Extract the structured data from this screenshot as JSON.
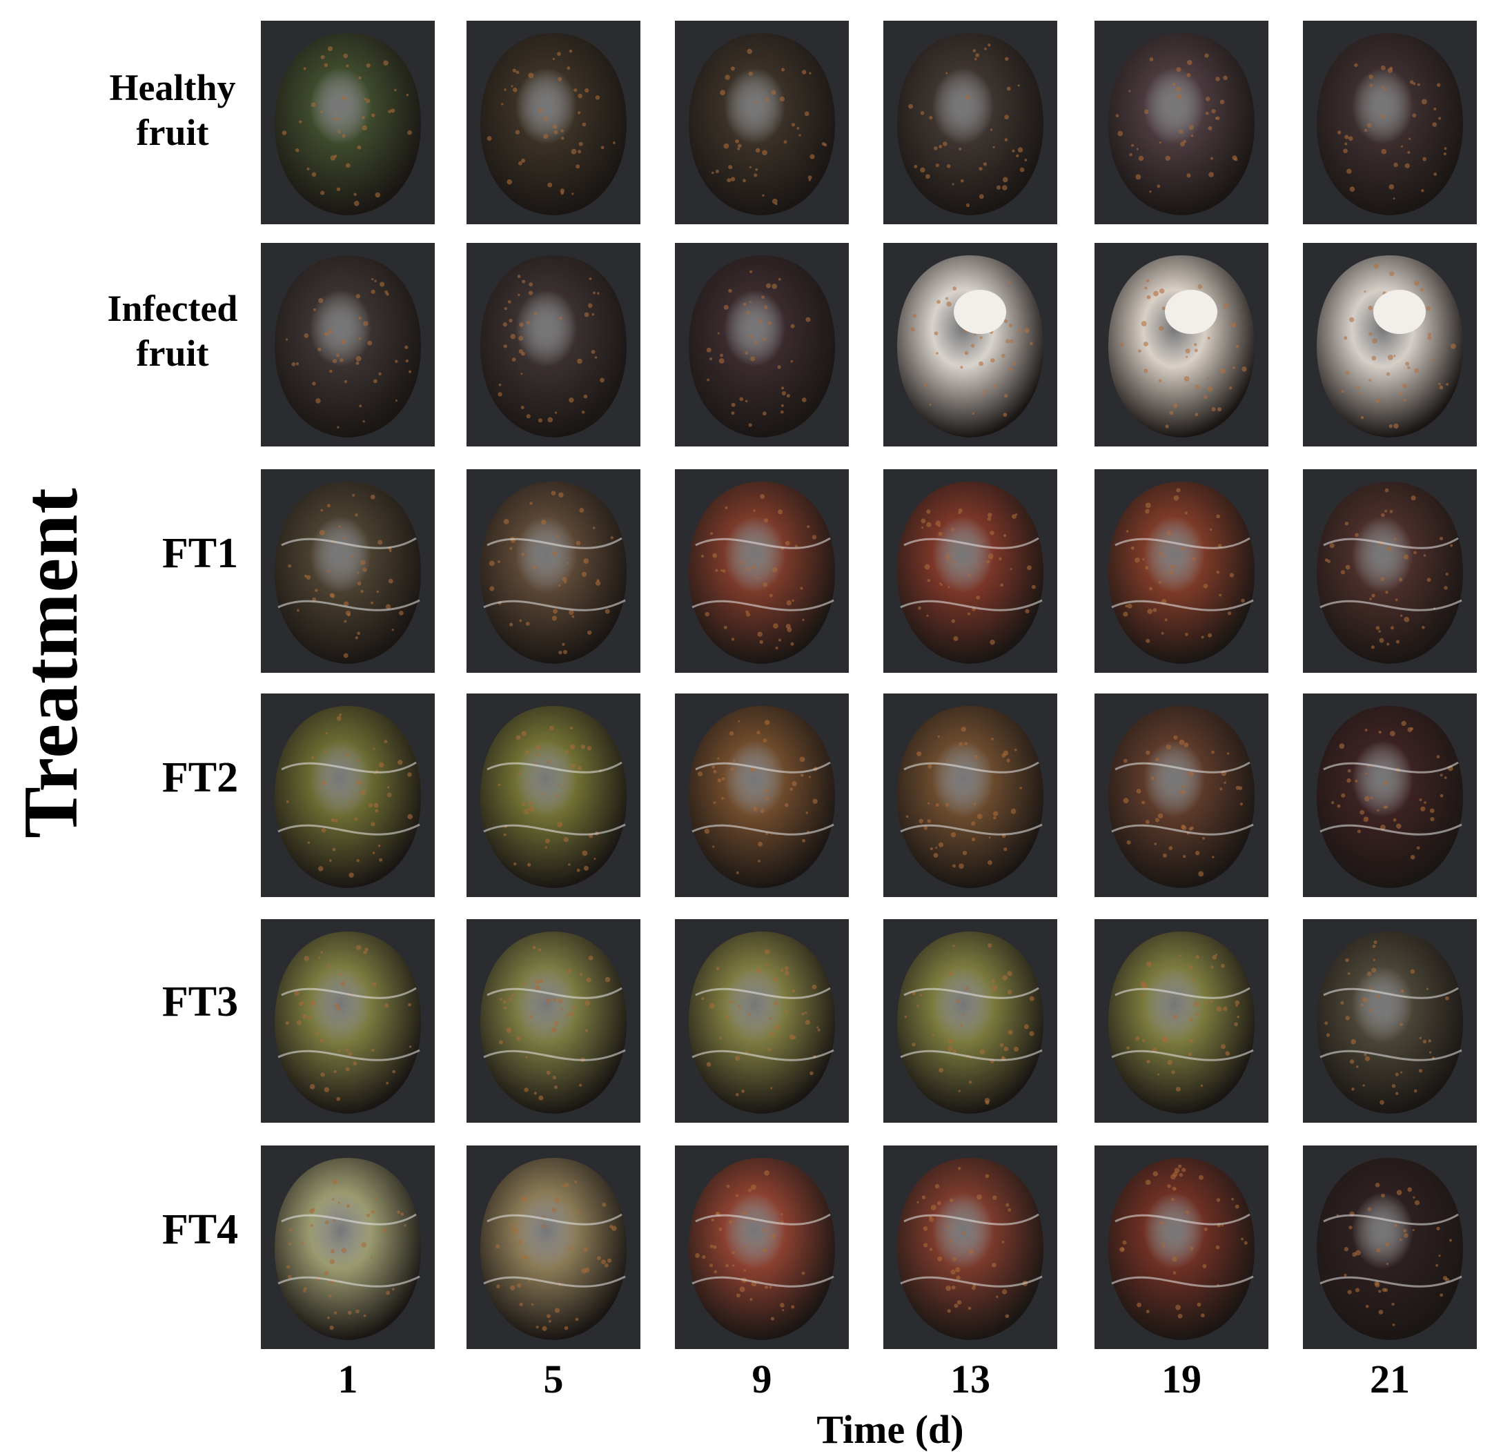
{
  "y_axis_title": "Treatment",
  "x_axis_title": "Time (d)",
  "columns": [
    "1",
    "5",
    "9",
    "13",
    "19",
    "21"
  ],
  "rows": [
    {
      "id": "healthy",
      "label_line1": "Healthy",
      "label_line2": "fruit"
    },
    {
      "id": "infected",
      "label_line1": "Infected",
      "label_line2": "fruit"
    },
    {
      "id": "ft1",
      "label_line1": "FT1",
      "label_line2": ""
    },
    {
      "id": "ft2",
      "label_line1": "FT2",
      "label_line2": ""
    },
    {
      "id": "ft3",
      "label_line1": "FT3",
      "label_line2": ""
    },
    {
      "id": "ft4",
      "label_line1": "FT4",
      "label_line2": ""
    }
  ],
  "colors": {
    "background": "#2b2c2f",
    "healthy": [
      "#3e4a2c",
      "#3a3126",
      "#3a3128",
      "#3d3430",
      "#4a3a3e",
      "#3c2e2e"
    ],
    "infected": [
      "#3a3230",
      "#3a3030",
      "#3a2b2e",
      "#d8d2cc",
      "#d9d0c6",
      "#d6cfc8"
    ],
    "ft1": [
      "#4a4030",
      "#5a4634",
      "#7a3a2a",
      "#7a3628",
      "#7c3a28",
      "#4a2e2a"
    ],
    "ft2": [
      "#6a6a32",
      "#707034",
      "#6e4a2c",
      "#6a4a2e",
      "#5c3a2a",
      "#3c2222"
    ],
    "ft3": [
      "#7a7a40",
      "#7a7a42",
      "#7c7a40",
      "#7a7a3e",
      "#7a7a3e",
      "#4a4436"
    ],
    "ft4": [
      "#9a9a70",
      "#8a7a56",
      "#8a4030",
      "#7a3a2c",
      "#6e3024",
      "#2e2020"
    ]
  }
}
